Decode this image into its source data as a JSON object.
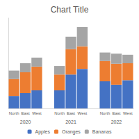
{
  "chart_data": {
    "type": "bar",
    "title": "Chart Title",
    "categories": [
      "North",
      "East",
      "West",
      null,
      "North",
      "East",
      "West",
      null,
      "North",
      "East",
      "West"
    ],
    "group_labels": [
      "2020",
      "2021",
      "2022"
    ],
    "series": [
      {
        "name": "Apples",
        "color": "#4472c4",
        "values": [
          22,
          27,
          32,
          null,
          32,
          60,
          70,
          null,
          48,
          42,
          50
        ]
      },
      {
        "name": "Oranges",
        "color": "#ed7d31",
        "values": [
          30,
          37,
          42,
          null,
          28,
          45,
          40,
          null,
          36,
          37,
          30
        ]
      },
      {
        "name": "Bananas",
        "color": "#a5a5a5",
        "values": [
          15,
          16,
          16,
          null,
          15,
          22,
          34,
          null,
          15,
          18,
          15
        ]
      }
    ],
    "ylim": [
      0,
      160
    ],
    "stacked": true,
    "legend": "bottom",
    "grid": false,
    "tick_labels": "x"
  }
}
